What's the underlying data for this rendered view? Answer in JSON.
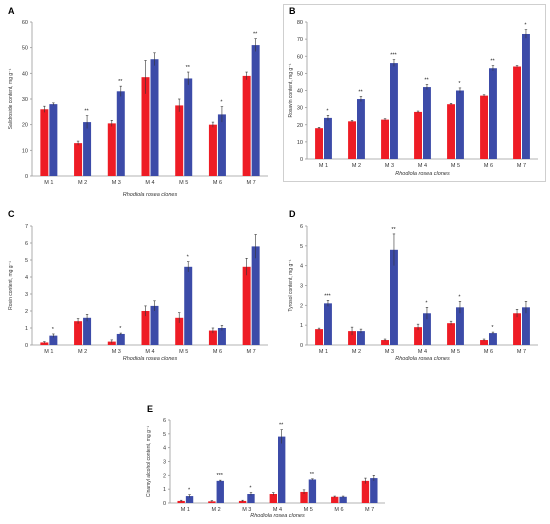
{
  "colors": {
    "series_a": "#ee1c25",
    "series_b": "#3c4ba8",
    "axis": "#9a9a9a",
    "error": "#333333"
  },
  "chart_data": [
    {
      "type": "bar",
      "panel_label": "A",
      "ylabel": "Salidroside content, mg g⁻¹",
      "xlabel": "Rhodiola rosea clones",
      "ylim": [
        0,
        60
      ],
      "yticks": [
        0,
        10,
        20,
        30,
        40,
        50,
        60
      ],
      "categories": [
        "M 1",
        "M 2",
        "M 3",
        "M 4",
        "M 5",
        "M 6",
        "M 7"
      ],
      "series": [
        {
          "values": [
            26,
            12.8,
            20.5,
            38.5,
            27.5,
            20,
            39
          ],
          "errors": [
            1.2,
            0.8,
            1.2,
            6.5,
            2.5,
            1.0,
            1.5
          ]
        },
        {
          "values": [
            28,
            21,
            33,
            45.5,
            38,
            24,
            51
          ],
          "errors": [
            0.5,
            2.5,
            2.0,
            2.5,
            2.5,
            3.0,
            2.5
          ]
        }
      ],
      "significance": [
        "",
        "**",
        "**",
        "",
        "**",
        "*",
        "**"
      ],
      "grid": false
    },
    {
      "type": "bar",
      "panel_label": "B",
      "ylabel": "Rosavin content, mg g⁻¹",
      "xlabel": "Rhodiola rosea clones",
      "ylim": [
        0,
        80
      ],
      "yticks": [
        0,
        10,
        20,
        30,
        40,
        50,
        60,
        70,
        80
      ],
      "categories": [
        "M 1",
        "M 2",
        "M 3",
        "M 4",
        "M 5",
        "M 6",
        "M 7"
      ],
      "series": [
        {
          "values": [
            18,
            22,
            23,
            27.5,
            32,
            37,
            54
          ],
          "errors": [
            0.5,
            0.5,
            0.5,
            0.5,
            0.5,
            0.5,
            0.5
          ]
        },
        {
          "values": [
            24,
            35,
            56,
            42,
            40,
            53,
            73
          ],
          "errors": [
            1.5,
            1.5,
            2.0,
            1.5,
            1.5,
            1.5,
            2.5
          ]
        }
      ],
      "significance": [
        "*",
        "**",
        "***",
        "**",
        "*",
        "**",
        "*"
      ],
      "grid": false
    },
    {
      "type": "bar",
      "panel_label": "C",
      "ylabel": "Rosin content, mg g⁻¹",
      "xlabel": "Rhodiola rosea clones",
      "ylim": [
        0,
        7
      ],
      "yticks": [
        0,
        1,
        2,
        3,
        4,
        5,
        6,
        7
      ],
      "categories": [
        "M 1",
        "M 2",
        "M 3",
        "M 4",
        "M 5",
        "M 6",
        "M 7"
      ],
      "series": [
        {
          "values": [
            0.15,
            1.4,
            0.2,
            2.0,
            1.6,
            0.85,
            4.6
          ],
          "errors": [
            0.05,
            0.15,
            0.1,
            0.3,
            0.3,
            0.15,
            0.5
          ]
        },
        {
          "values": [
            0.55,
            1.6,
            0.65,
            2.3,
            4.6,
            1.0,
            5.8
          ],
          "errors": [
            0.1,
            0.2,
            0.05,
            0.3,
            0.3,
            0.15,
            0.7
          ]
        }
      ],
      "significance": [
        "*",
        "",
        "*",
        "",
        "*",
        "",
        ""
      ],
      "grid": false
    },
    {
      "type": "bar",
      "panel_label": "D",
      "ylabel": "Tyrosol content, mg g⁻¹",
      "xlabel": "Rhodiola rosea clones",
      "ylim": [
        0,
        6
      ],
      "yticks": [
        0,
        1,
        2,
        3,
        4,
        5,
        6
      ],
      "categories": [
        "M 1",
        "M 2",
        "M 3",
        "M 4",
        "M 5",
        "M 6",
        "M 7"
      ],
      "series": [
        {
          "values": [
            0.8,
            0.7,
            0.25,
            0.9,
            1.1,
            0.25,
            1.6
          ],
          "errors": [
            0.05,
            0.2,
            0.05,
            0.15,
            0.1,
            0.05,
            0.2
          ]
        },
        {
          "values": [
            2.1,
            0.7,
            4.8,
            1.6,
            1.9,
            0.6,
            1.9
          ],
          "errors": [
            0.15,
            0.1,
            0.8,
            0.3,
            0.3,
            0.05,
            0.3
          ]
        }
      ],
      "significance": [
        "***",
        "",
        "**",
        "*",
        "*",
        "*",
        ""
      ],
      "grid": false
    },
    {
      "type": "bar",
      "panel_label": "E",
      "ylabel": "Cinamyl alcohol content, mg g⁻¹",
      "xlabel": "Rhodiola rosea clones",
      "ylim": [
        0,
        6
      ],
      "yticks": [
        0,
        1,
        2,
        3,
        4,
        5,
        6
      ],
      "categories": [
        "M 1",
        "M 2",
        "M 3",
        "M 4",
        "M 5",
        "M 6",
        "M 7"
      ],
      "series": [
        {
          "values": [
            0.15,
            0.12,
            0.15,
            0.65,
            0.8,
            0.45,
            1.6
          ],
          "errors": [
            0.05,
            0.05,
            0.05,
            0.1,
            0.15,
            0.05,
            0.2
          ]
        },
        {
          "values": [
            0.5,
            1.6,
            0.65,
            4.8,
            1.7,
            0.45,
            1.8
          ],
          "errors": [
            0.1,
            0.05,
            0.1,
            0.5,
            0.05,
            0.05,
            0.2
          ]
        }
      ],
      "significance": [
        "*",
        "***",
        "*",
        "**",
        "**",
        "",
        ""
      ],
      "grid": false
    }
  ]
}
